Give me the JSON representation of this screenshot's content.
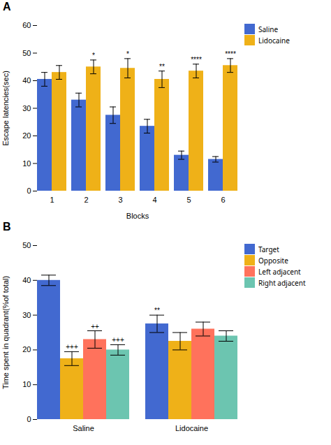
{
  "chart_data": [
    {
      "type": "bar",
      "title": "A",
      "xlabel": "Blocks",
      "ylabel": "Escape latencies(sec)",
      "categories": [
        "1",
        "2",
        "3",
        "4",
        "5",
        "6"
      ],
      "series": [
        {
          "name": "Saline",
          "values": [
            40.5,
            33.0,
            27.5,
            23.5,
            13.0,
            11.5
          ],
          "errors": [
            2.5,
            2.5,
            3.0,
            2.5,
            1.5,
            1.0
          ]
        },
        {
          "name": "Lidocaine",
          "values": [
            43.0,
            45.0,
            44.5,
            40.5,
            43.5,
            45.5
          ],
          "errors": [
            2.5,
            2.5,
            3.5,
            3.0,
            2.5,
            2.5
          ],
          "annotations": [
            null,
            "*",
            "*",
            "**",
            "****",
            "****"
          ]
        }
      ],
      "ylim": [
        0,
        60
      ],
      "yticks": [
        0,
        10,
        20,
        30,
        40,
        50,
        60
      ],
      "legend": "right"
    },
    {
      "type": "bar",
      "title": "B",
      "ylabel": "Time spent in quadrant(%of total)",
      "categories": [
        "Saline",
        "Lidocaine"
      ],
      "series": [
        {
          "name": "Target",
          "values": [
            40.0,
            27.5
          ],
          "errors": [
            1.5,
            2.5
          ],
          "annotations": [
            null,
            "**"
          ]
        },
        {
          "name": "Opposite",
          "values": [
            17.5,
            22.5
          ],
          "errors": [
            2.0,
            2.5
          ],
          "annotations": [
            "+++",
            null
          ]
        },
        {
          "name": "Left adjacent",
          "values": [
            23.0,
            26.0
          ],
          "errors": [
            2.5,
            2.0
          ],
          "annotations": [
            "++",
            null
          ]
        },
        {
          "name": "Right adjacent",
          "values": [
            20.0,
            24.0
          ],
          "errors": [
            1.5,
            1.5
          ],
          "annotations": [
            "+++",
            null
          ]
        }
      ],
      "ylim": [
        0,
        50
      ],
      "yticks": [
        0,
        10,
        20,
        30,
        40,
        50
      ],
      "legend": "right"
    }
  ]
}
